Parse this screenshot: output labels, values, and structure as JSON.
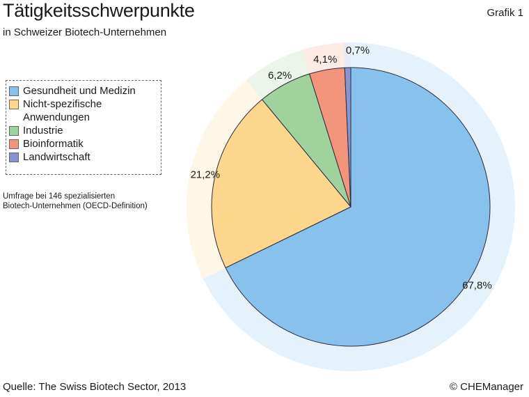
{
  "header": {
    "title": "Tätigkeitsschwerpunkte",
    "subtitle": "in Schweizer Biotech-Unternehmen",
    "figure_label": "Grafik 1"
  },
  "note": {
    "line1": "Umfrage bei 146 spezialisierten",
    "line2": "Biotech-Unternehmen (OECD-Definition)"
  },
  "footer": {
    "source": "Quelle: The Swiss Biotech Sector, 2013",
    "copyright": "© CHEManager"
  },
  "chart_data": {
    "type": "pie",
    "title": "Tätigkeitsschwerpunkte",
    "legend_position": "left",
    "slices": [
      {
        "name": "Gesundheit und Medizin",
        "value": 67.8,
        "label": "67,8%",
        "color": "#88c1ec",
        "halo": "#e6f2fb"
      },
      {
        "name": "Nicht-spezifische",
        "name_line2": "Anwendungen",
        "value": 21.2,
        "label": "21,2%",
        "color": "#fdd78e",
        "halo": "#fef6e6"
      },
      {
        "name": "Industrie",
        "value": 6.2,
        "label": "6,2%",
        "color": "#a0d39b",
        "halo": "#ebf5ea"
      },
      {
        "name": "Bioinformatik",
        "value": 4.1,
        "label": "4,1%",
        "color": "#f3957c",
        "halo": "#fdebe6"
      },
      {
        "name": "Landwirtschaft",
        "value": 0.7,
        "label": "0,7%",
        "color": "#8794d0",
        "halo": "#e9ebf6"
      }
    ]
  }
}
